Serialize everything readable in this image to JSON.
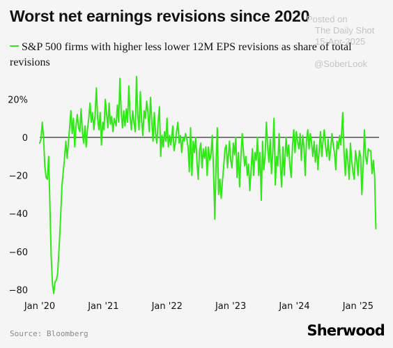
{
  "header": {
    "title": "Worst net earnings revisions since 2020"
  },
  "watermark": {
    "posted": "Posted on",
    "site": "The Daily Shot",
    "date": "15-Apr-2025",
    "handle": "@SoberLook"
  },
  "footer": {
    "source": "Source: Bloomberg",
    "brand": "Sherwood"
  },
  "chart_data": {
    "type": "line",
    "title": "Worst net earnings revisions since 2020",
    "xlabel": "",
    "ylabel": "",
    "x_tick_labels": [
      "Jan '20",
      "Jan '21",
      "Jan '22",
      "Jan '23",
      "Jan '24",
      "Jan '25"
    ],
    "y_ticks": [
      20,
      0,
      -20,
      -40,
      -60,
      -80
    ],
    "y_tick_labels": [
      "20%",
      "0",
      "−20",
      "−40",
      "−60",
      "−80"
    ],
    "xlim": [
      2020.0,
      2025.33
    ],
    "ylim": [
      -85,
      33
    ],
    "grid": false,
    "zero_line": true,
    "legend_position": "top-left",
    "colors": {
      "series": "#33e61a",
      "text": "#111111",
      "zero_line": "#000000"
    },
    "series": [
      {
        "name": "S&P 500 firms with higher less lower 12M EPS revisions as share of total revisions",
        "points": [
          [
            2020.0,
            -3
          ],
          [
            2020.02,
            -1
          ],
          [
            2020.04,
            8
          ],
          [
            2020.06,
            0
          ],
          [
            2020.08,
            -15
          ],
          [
            2020.1,
            -21
          ],
          [
            2020.12,
            -22
          ],
          [
            2020.14,
            -10
          ],
          [
            2020.16,
            -35
          ],
          [
            2020.18,
            -62
          ],
          [
            2020.2,
            -77
          ],
          [
            2020.22,
            -82
          ],
          [
            2020.24,
            -76
          ],
          [
            2020.26,
            -75
          ],
          [
            2020.28,
            -72
          ],
          [
            2020.31,
            -55
          ],
          [
            2020.33,
            -40
          ],
          [
            2020.35,
            -25
          ],
          [
            2020.37,
            -18
          ],
          [
            2020.39,
            -11
          ],
          [
            2020.41,
            -2
          ],
          [
            2020.43,
            -11
          ],
          [
            2020.45,
            -3
          ],
          [
            2020.47,
            5
          ],
          [
            2020.49,
            14
          ],
          [
            2020.51,
            2
          ],
          [
            2020.53,
            10
          ],
          [
            2020.55,
            -5
          ],
          [
            2020.57,
            6
          ],
          [
            2020.59,
            12
          ],
          [
            2020.61,
            5
          ],
          [
            2020.63,
            3
          ],
          [
            2020.65,
            15
          ],
          [
            2020.67,
            3
          ],
          [
            2020.69,
            -3
          ],
          [
            2020.71,
            6
          ],
          [
            2020.73,
            -5
          ],
          [
            2020.75,
            4
          ],
          [
            2020.77,
            10
          ],
          [
            2020.79,
            18
          ],
          [
            2020.81,
            8
          ],
          [
            2020.83,
            13
          ],
          [
            2020.85,
            4
          ],
          [
            2020.87,
            12
          ],
          [
            2020.89,
            26
          ],
          [
            2020.91,
            10
          ],
          [
            2020.93,
            4
          ],
          [
            2020.95,
            13
          ],
          [
            2020.97,
            -4
          ],
          [
            2020.99,
            8
          ],
          [
            2021.01,
            4
          ],
          [
            2021.03,
            20
          ],
          [
            2021.05,
            13
          ],
          [
            2021.07,
            5
          ],
          [
            2021.09,
            18
          ],
          [
            2021.11,
            7
          ],
          [
            2021.13,
            11
          ],
          [
            2021.15,
            3
          ],
          [
            2021.17,
            10
          ],
          [
            2021.2,
            6
          ],
          [
            2021.22,
            17
          ],
          [
            2021.24,
            8
          ],
          [
            2021.26,
            31
          ],
          [
            2021.28,
            13
          ],
          [
            2021.3,
            5
          ],
          [
            2021.32,
            14
          ],
          [
            2021.34,
            6
          ],
          [
            2021.36,
            15
          ],
          [
            2021.38,
            8
          ],
          [
            2021.4,
            27
          ],
          [
            2021.42,
            11
          ],
          [
            2021.44,
            4
          ],
          [
            2021.46,
            14
          ],
          [
            2021.48,
            8
          ],
          [
            2021.5,
            3
          ],
          [
            2021.52,
            32
          ],
          [
            2021.54,
            12
          ],
          [
            2021.56,
            4
          ],
          [
            2021.58,
            24
          ],
          [
            2021.6,
            9
          ],
          [
            2021.62,
            1
          ],
          [
            2021.64,
            14
          ],
          [
            2021.66,
            10
          ],
          [
            2021.68,
            19
          ],
          [
            2021.7,
            13
          ],
          [
            2021.72,
            3
          ],
          [
            2021.74,
            21
          ],
          [
            2021.76,
            9
          ],
          [
            2021.78,
            -2
          ],
          [
            2021.8,
            13
          ],
          [
            2021.82,
            2
          ],
          [
            2021.84,
            -3
          ],
          [
            2021.86,
            8
          ],
          [
            2021.88,
            16
          ],
          [
            2021.9,
            -10
          ],
          [
            2021.92,
            1
          ],
          [
            2021.94,
            -5
          ],
          [
            2021.96,
            3
          ],
          [
            2021.98,
            -2
          ],
          [
            2022.0,
            10
          ],
          [
            2022.02,
            -5
          ],
          [
            2022.04,
            1
          ],
          [
            2022.06,
            -4
          ],
          [
            2022.09,
            6
          ],
          [
            2022.11,
            -7
          ],
          [
            2022.13,
            -3
          ],
          [
            2022.15,
            3
          ],
          [
            2022.17,
            8
          ],
          [
            2022.19,
            -3
          ],
          [
            2022.21,
            1
          ],
          [
            2022.23,
            -8
          ],
          [
            2022.25,
            0
          ],
          [
            2022.27,
            -2
          ],
          [
            2022.29,
            2
          ],
          [
            2022.31,
            -1
          ],
          [
            2022.33,
            -5
          ],
          [
            2022.35,
            -18
          ],
          [
            2022.37,
            5
          ],
          [
            2022.39,
            -20
          ],
          [
            2022.41,
            -2
          ],
          [
            2022.43,
            -8
          ],
          [
            2022.45,
            0
          ],
          [
            2022.47,
            -13
          ],
          [
            2022.49,
            -22
          ],
          [
            2022.51,
            -7
          ],
          [
            2022.53,
            -3
          ],
          [
            2022.55,
            -16
          ],
          [
            2022.57,
            -6
          ],
          [
            2022.59,
            -11
          ],
          [
            2022.61,
            -5
          ],
          [
            2022.63,
            -20
          ],
          [
            2022.65,
            -5
          ],
          [
            2022.67,
            -12
          ],
          [
            2022.69,
            -9
          ],
          [
            2022.71,
            1
          ],
          [
            2022.73,
            -17
          ],
          [
            2022.75,
            -43
          ],
          [
            2022.77,
            -13
          ],
          [
            2022.79,
            5
          ],
          [
            2022.81,
            -30
          ],
          [
            2022.83,
            -22
          ],
          [
            2022.85,
            -32
          ],
          [
            2022.87,
            -23
          ],
          [
            2022.89,
            -15
          ],
          [
            2022.91,
            -6
          ],
          [
            2022.93,
            -4
          ],
          [
            2022.95,
            -16
          ],
          [
            2022.98,
            -2
          ],
          [
            2023.0,
            -12
          ],
          [
            2023.02,
            -16
          ],
          [
            2023.04,
            -3
          ],
          [
            2023.06,
            -9
          ],
          [
            2023.08,
            0
          ],
          [
            2023.1,
            -21
          ],
          [
            2023.12,
            -8
          ],
          [
            2023.14,
            -26
          ],
          [
            2023.16,
            -10
          ],
          [
            2023.18,
            2
          ],
          [
            2023.2,
            -8
          ],
          [
            2023.22,
            -15
          ],
          [
            2023.24,
            -10
          ],
          [
            2023.26,
            -20
          ],
          [
            2023.28,
            -14
          ],
          [
            2023.3,
            -28
          ],
          [
            2023.32,
            -17
          ],
          [
            2023.34,
            -6
          ],
          [
            2023.36,
            -20
          ],
          [
            2023.38,
            -8
          ],
          [
            2023.4,
            -12
          ],
          [
            2023.42,
            0
          ],
          [
            2023.44,
            -20
          ],
          [
            2023.46,
            -8
          ],
          [
            2023.48,
            -33
          ],
          [
            2023.5,
            -2
          ],
          [
            2023.52,
            -17
          ],
          [
            2023.54,
            -10
          ],
          [
            2023.56,
            8
          ],
          [
            2023.58,
            -5
          ],
          [
            2023.6,
            -13
          ],
          [
            2023.62,
            -1
          ],
          [
            2023.64,
            -19
          ],
          [
            2023.66,
            -8
          ],
          [
            2023.68,
            10
          ],
          [
            2023.7,
            -25
          ],
          [
            2023.72,
            -10
          ],
          [
            2023.74,
            -15
          ],
          [
            2023.76,
            2
          ],
          [
            2023.78,
            -15
          ],
          [
            2023.8,
            -26
          ],
          [
            2023.82,
            -5
          ],
          [
            2023.84,
            -20
          ],
          [
            2023.87,
            0
          ],
          [
            2023.89,
            -10
          ],
          [
            2023.91,
            -4
          ],
          [
            2023.93,
            -15
          ],
          [
            2023.95,
            -21
          ],
          [
            2023.97,
            -5
          ],
          [
            2023.99,
            4
          ],
          [
            2024.01,
            -8
          ],
          [
            2024.03,
            3
          ],
          [
            2024.05,
            -2
          ],
          [
            2024.07,
            -6
          ],
          [
            2024.09,
            2
          ],
          [
            2024.11,
            -12
          ],
          [
            2024.13,
            1
          ],
          [
            2024.15,
            -5
          ],
          [
            2024.17,
            -20
          ],
          [
            2024.19,
            -2
          ],
          [
            2024.21,
            4
          ],
          [
            2024.23,
            -6
          ],
          [
            2024.25,
            2
          ],
          [
            2024.27,
            -3
          ],
          [
            2024.29,
            -10
          ],
          [
            2024.31,
            -2
          ],
          [
            2024.33,
            -13
          ],
          [
            2024.35,
            -4
          ],
          [
            2024.37,
            -17
          ],
          [
            2024.39,
            -6
          ],
          [
            2024.41,
            3
          ],
          [
            2024.43,
            -10
          ],
          [
            2024.45,
            -2
          ],
          [
            2024.47,
            4
          ],
          [
            2024.49,
            -5
          ],
          [
            2024.51,
            -10
          ],
          [
            2024.53,
            -1
          ],
          [
            2024.55,
            -12
          ],
          [
            2024.57,
            -6
          ],
          [
            2024.59,
            2
          ],
          [
            2024.61,
            -4
          ],
          [
            2024.63,
            -8
          ],
          [
            2024.65,
            -17
          ],
          [
            2024.67,
            -2
          ],
          [
            2024.69,
            -6
          ],
          [
            2024.71,
            1
          ],
          [
            2024.73,
            -4
          ],
          [
            2024.76,
            13
          ],
          [
            2024.78,
            -8
          ],
          [
            2024.8,
            -20
          ],
          [
            2024.82,
            -6
          ],
          [
            2024.84,
            -12
          ],
          [
            2024.86,
            -22
          ],
          [
            2024.88,
            -3
          ],
          [
            2024.9,
            -12
          ],
          [
            2024.92,
            -18
          ],
          [
            2024.94,
            -22
          ],
          [
            2024.96,
            -7
          ],
          [
            2024.98,
            -12
          ],
          [
            2025.0,
            -20
          ],
          [
            2025.02,
            -7
          ],
          [
            2025.04,
            -10
          ],
          [
            2025.06,
            -30
          ],
          [
            2025.08,
            -15
          ],
          [
            2025.1,
            4
          ],
          [
            2025.12,
            -10
          ],
          [
            2025.14,
            -14
          ],
          [
            2025.16,
            -6
          ],
          [
            2025.18,
            -7
          ],
          [
            2025.2,
            -7
          ],
          [
            2025.22,
            -19
          ],
          [
            2025.24,
            -12
          ],
          [
            2025.26,
            -20
          ],
          [
            2025.28,
            -48
          ]
        ]
      }
    ]
  }
}
